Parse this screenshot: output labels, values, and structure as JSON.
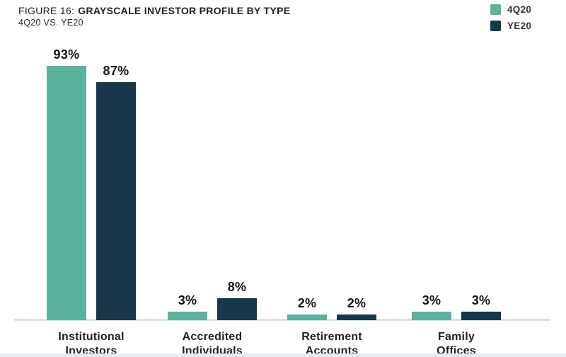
{
  "header": {
    "title_prefix": "FIGURE 16:",
    "title_main": "GRAYSCALE INVESTOR PROFILE BY TYPE",
    "subtitle": "4Q20 VS. YE20"
  },
  "legend": [
    {
      "name": "4Q20",
      "color": "#5AB39C"
    },
    {
      "name": "YE20",
      "color": "#17384B"
    }
  ],
  "chart_data": {
    "type": "bar",
    "title": "FIGURE 16: GRAYSCALE INVESTOR PROFILE BY TYPE",
    "subtitle": "4Q20 VS. YE20",
    "categories": [
      "Institutional Investors",
      "Accredited Individuals",
      "Retirement Accounts",
      "Family Offices"
    ],
    "categories_lines": [
      [
        "Institutional",
        "Investors"
      ],
      [
        "Accredited",
        "Individuals"
      ],
      [
        "Retirement",
        "Accounts"
      ],
      [
        "Family",
        "Offices"
      ]
    ],
    "series": [
      {
        "name": "4Q20",
        "color": "#5AB39C",
        "values": [
          93,
          3,
          2,
          3
        ]
      },
      {
        "name": "YE20",
        "color": "#17384B",
        "values": [
          87,
          8,
          2,
          3
        ]
      }
    ],
    "value_suffix": "%",
    "ylabel": "",
    "xlabel": "",
    "ylim": [
      0,
      100
    ],
    "grid": false,
    "legend_position": "top-right",
    "data_labels": true
  }
}
